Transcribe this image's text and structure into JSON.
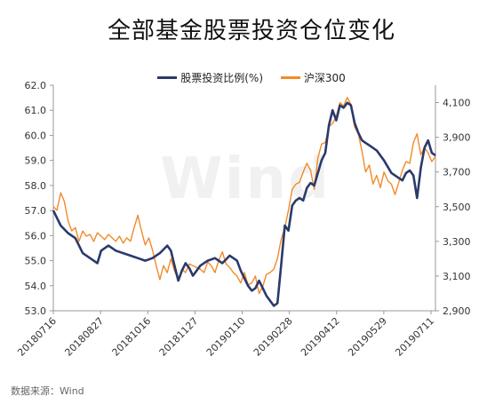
{
  "title": "全部基金股票投资仓位变化",
  "source": "数据来源：Wind",
  "watermark": "Wind",
  "colors": {
    "series1": "#2b3a6b",
    "series2": "#f28a2a",
    "axis": "#999999"
  },
  "chart_data": {
    "type": "line",
    "title": "全部基金股票投资仓位变化",
    "legend_position": "top-center",
    "grid": false,
    "x_ticks": [
      "20180716",
      "20180827",
      "20181016",
      "20181127",
      "20190110",
      "20190228",
      "20190412",
      "20190529",
      "20190711"
    ],
    "y_left": {
      "min": 53.0,
      "max": 62.0,
      "ticks": [
        "53.0",
        "54.0",
        "55.0",
        "56.0",
        "57.0",
        "58.0",
        "59.0",
        "60.0",
        "61.0",
        "62.0"
      ]
    },
    "y_right": {
      "min": 2900,
      "max": 4200,
      "ticks": [
        "2,900",
        "3,100",
        "3,300",
        "3,500",
        "3,700",
        "3,900",
        "4,100"
      ],
      "tick_values": [
        2900,
        3100,
        3300,
        3500,
        3700,
        3900,
        4100
      ]
    },
    "series": [
      {
        "name": "股票投资比例(%)",
        "axis": "left",
        "color": "#2b3a6b",
        "points": [
          [
            0,
            57.0
          ],
          [
            2,
            56.4
          ],
          [
            4,
            56.1
          ],
          [
            6,
            55.9
          ],
          [
            8,
            55.3
          ],
          [
            10,
            55.1
          ],
          [
            12,
            54.9
          ],
          [
            13,
            55.4
          ],
          [
            15,
            55.6
          ],
          [
            17,
            55.4
          ],
          [
            19,
            55.3
          ],
          [
            21,
            55.2
          ],
          [
            23,
            55.1
          ],
          [
            25,
            55.0
          ],
          [
            27,
            55.1
          ],
          [
            29,
            55.3
          ],
          [
            31,
            55.6
          ],
          [
            32,
            55.4
          ],
          [
            33,
            54.8
          ],
          [
            34,
            54.2
          ],
          [
            35,
            54.6
          ],
          [
            36,
            54.9
          ],
          [
            37,
            54.7
          ],
          [
            38,
            54.4
          ],
          [
            40,
            54.8
          ],
          [
            42,
            55.0
          ],
          [
            44,
            55.1
          ],
          [
            46,
            54.9
          ],
          [
            48,
            55.2
          ],
          [
            49,
            55.1
          ],
          [
            50,
            55.0
          ],
          [
            51,
            54.6
          ],
          [
            52,
            54.3
          ],
          [
            53,
            54.0
          ],
          [
            54,
            53.8
          ],
          [
            55,
            53.9
          ],
          [
            56,
            54.2
          ],
          [
            57,
            53.9
          ],
          [
            58,
            53.6
          ],
          [
            59,
            53.4
          ],
          [
            60,
            53.2
          ],
          [
            61,
            53.3
          ],
          [
            62,
            54.8
          ],
          [
            63,
            56.4
          ],
          [
            64,
            56.2
          ],
          [
            65,
            57.2
          ],
          [
            66,
            57.4
          ],
          [
            67,
            57.5
          ],
          [
            68,
            57.4
          ],
          [
            69,
            57.9
          ],
          [
            70,
            58.1
          ],
          [
            71,
            58.0
          ],
          [
            72,
            58.5
          ],
          [
            73,
            59.0
          ],
          [
            74,
            59.3
          ],
          [
            75,
            60.4
          ],
          [
            76,
            61.0
          ],
          [
            77,
            60.6
          ],
          [
            78,
            61.2
          ],
          [
            79,
            61.1
          ],
          [
            80,
            61.3
          ],
          [
            81,
            61.2
          ],
          [
            82,
            60.5
          ],
          [
            83,
            60.1
          ],
          [
            84,
            59.8
          ],
          [
            85,
            59.7
          ],
          [
            86,
            59.6
          ],
          [
            88,
            59.4
          ],
          [
            90,
            59.0
          ],
          [
            92,
            58.5
          ],
          [
            94,
            58.3
          ],
          [
            95,
            58.2
          ],
          [
            96,
            58.5
          ],
          [
            97,
            58.6
          ],
          [
            98,
            58.4
          ],
          [
            99,
            57.5
          ],
          [
            100,
            58.7
          ],
          [
            101,
            59.5
          ],
          [
            102,
            59.8
          ],
          [
            103,
            59.3
          ],
          [
            104,
            59.2
          ]
        ]
      },
      {
        "name": "沪深300",
        "axis": "right",
        "color": "#f28a2a",
        "points": [
          [
            0,
            3500
          ],
          [
            1,
            3480
          ],
          [
            2,
            3580
          ],
          [
            3,
            3530
          ],
          [
            4,
            3420
          ],
          [
            5,
            3360
          ],
          [
            6,
            3380
          ],
          [
            7,
            3300
          ],
          [
            8,
            3360
          ],
          [
            9,
            3330
          ],
          [
            10,
            3340
          ],
          [
            11,
            3300
          ],
          [
            12,
            3350
          ],
          [
            13,
            3330
          ],
          [
            14,
            3310
          ],
          [
            15,
            3340
          ],
          [
            16,
            3320
          ],
          [
            17,
            3300
          ],
          [
            18,
            3330
          ],
          [
            19,
            3290
          ],
          [
            20,
            3320
          ],
          [
            21,
            3300
          ],
          [
            22,
            3380
          ],
          [
            23,
            3450
          ],
          [
            24,
            3360
          ],
          [
            25,
            3280
          ],
          [
            26,
            3320
          ],
          [
            27,
            3250
          ],
          [
            28,
            3160
          ],
          [
            29,
            3080
          ],
          [
            30,
            3160
          ],
          [
            31,
            3120
          ],
          [
            32,
            3200
          ],
          [
            33,
            3130
          ],
          [
            34,
            3080
          ],
          [
            35,
            3140
          ],
          [
            36,
            3120
          ],
          [
            37,
            3170
          ],
          [
            38,
            3160
          ],
          [
            39,
            3150
          ],
          [
            40,
            3140
          ],
          [
            41,
            3120
          ],
          [
            42,
            3180
          ],
          [
            43,
            3160
          ],
          [
            44,
            3120
          ],
          [
            45,
            3190
          ],
          [
            46,
            3240
          ],
          [
            47,
            3170
          ],
          [
            48,
            3150
          ],
          [
            49,
            3120
          ],
          [
            50,
            3100
          ],
          [
            51,
            3060
          ],
          [
            52,
            3120
          ],
          [
            53,
            3050
          ],
          [
            54,
            3060
          ],
          [
            55,
            3100
          ],
          [
            56,
            3000
          ],
          [
            57,
            3040
          ],
          [
            58,
            3110
          ],
          [
            59,
            3120
          ],
          [
            60,
            3140
          ],
          [
            61,
            3200
          ],
          [
            62,
            3310
          ],
          [
            63,
            3380
          ],
          [
            64,
            3480
          ],
          [
            65,
            3600
          ],
          [
            66,
            3630
          ],
          [
            67,
            3640
          ],
          [
            68,
            3700
          ],
          [
            69,
            3750
          ],
          [
            70,
            3710
          ],
          [
            71,
            3600
          ],
          [
            72,
            3780
          ],
          [
            73,
            3860
          ],
          [
            74,
            3870
          ],
          [
            75,
            3960
          ],
          [
            76,
            3980
          ],
          [
            77,
            4020
          ],
          [
            78,
            4100
          ],
          [
            79,
            4080
          ],
          [
            80,
            4130
          ],
          [
            81,
            4090
          ],
          [
            82,
            3960
          ],
          [
            83,
            3920
          ],
          [
            84,
            3820
          ],
          [
            85,
            3700
          ],
          [
            86,
            3740
          ],
          [
            87,
            3630
          ],
          [
            88,
            3680
          ],
          [
            89,
            3610
          ],
          [
            90,
            3700
          ],
          [
            91,
            3650
          ],
          [
            92,
            3630
          ],
          [
            93,
            3570
          ],
          [
            94,
            3640
          ],
          [
            95,
            3710
          ],
          [
            96,
            3760
          ],
          [
            97,
            3750
          ],
          [
            98,
            3870
          ],
          [
            99,
            3920
          ],
          [
            100,
            3800
          ],
          [
            101,
            3840
          ],
          [
            102,
            3810
          ],
          [
            103,
            3760
          ],
          [
            104,
            3790
          ]
        ]
      }
    ]
  }
}
